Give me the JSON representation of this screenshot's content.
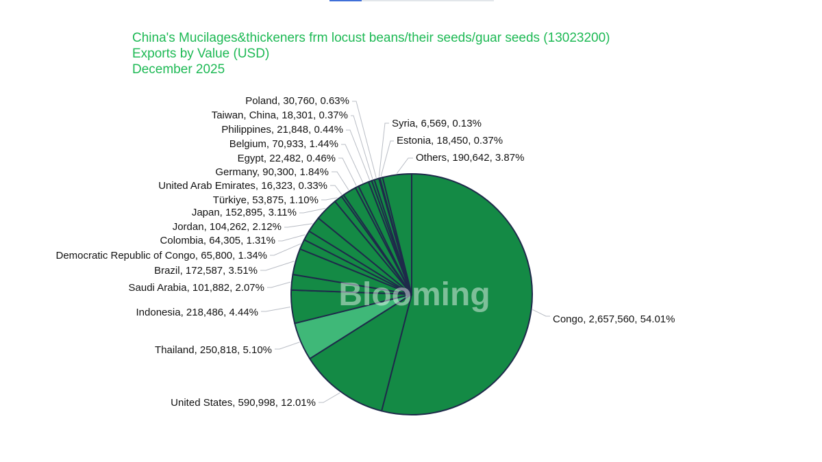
{
  "chart_data": {
    "type": "pie",
    "title": "China's Mucilages&thickeners frm locust beans/their seeds/guar seeds (13023200)",
    "subtitle": "Exports by Value (USD)",
    "period": "December 2025",
    "slices": [
      {
        "name": "Congo",
        "value": 2657560,
        "label": "Congo, 2,657,560, 54.01%"
      },
      {
        "name": "United States",
        "value": 590998,
        "label": "United States, 590,998, 12.01%"
      },
      {
        "name": "Thailand",
        "value": 250818,
        "label": "Thailand, 250,818, 5.10%"
      },
      {
        "name": "Indonesia",
        "value": 218486,
        "label": "Indonesia, 218,486, 4.44%"
      },
      {
        "name": "Saudi Arabia",
        "value": 101882,
        "label": "Saudi Arabia, 101,882, 2.07%"
      },
      {
        "name": "Brazil",
        "value": 172587,
        "label": "Brazil, 172,587, 3.51%"
      },
      {
        "name": "Democratic Republic of Congo",
        "value": 65800,
        "label": "Democratic Republic of Congo, 65,800, 1.34%"
      },
      {
        "name": "Colombia",
        "value": 64305,
        "label": "Colombia, 64,305, 1.31%"
      },
      {
        "name": "Jordan",
        "value": 104262,
        "label": "Jordan, 104,262, 2.12%"
      },
      {
        "name": "Japan",
        "value": 152895,
        "label": "Japan, 152,895, 3.11%"
      },
      {
        "name": "Türkiye",
        "value": 53875,
        "label": "Türkiye, 53,875, 1.10%"
      },
      {
        "name": "United Arab Emirates",
        "value": 16323,
        "label": "United Arab Emirates, 16,323, 0.33%"
      },
      {
        "name": "Germany",
        "value": 90300,
        "label": "Germany, 90,300, 1.84%"
      },
      {
        "name": "Egypt",
        "value": 22482,
        "label": "Egypt, 22,482, 0.46%"
      },
      {
        "name": "Belgium",
        "value": 70933,
        "label": "Belgium, 70,933, 1.44%"
      },
      {
        "name": "Philippines",
        "value": 21848,
        "label": "Philippines, 21,848, 0.44%"
      },
      {
        "name": "Taiwan, China",
        "value": 18301,
        "label": "Taiwan,  China, 18,301, 0.37%"
      },
      {
        "name": "Poland",
        "value": 30760,
        "label": "Poland, 30,760, 0.63%"
      },
      {
        "name": "Syria",
        "value": 6569,
        "label": "Syria, 6,569, 0.13%"
      },
      {
        "name": "Estonia",
        "value": 18450,
        "label": "Estonia, 18,450, 0.37%"
      },
      {
        "name": "Others",
        "value": 190642,
        "label": "Others, 190,642, 3.87%"
      }
    ],
    "legend": "none",
    "highlight": "Thailand"
  },
  "colors": {
    "title": "#1db954",
    "slice": "#148a45",
    "slice_highlight": "#3fb878",
    "slice_border": "#1e2a4a",
    "leader": "#b8bcc4",
    "label": "#111111"
  },
  "watermark": "Blooming"
}
